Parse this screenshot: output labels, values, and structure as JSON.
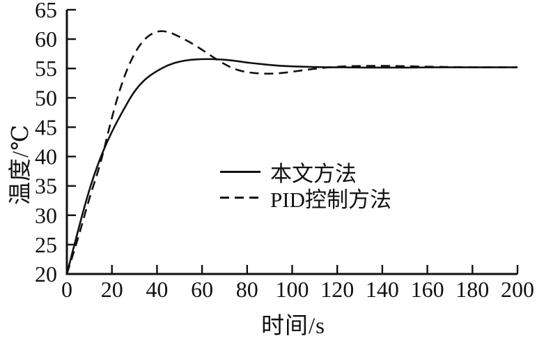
{
  "colors": {
    "ink": "#111111",
    "background": "#ffffff"
  },
  "chart_data": {
    "type": "line",
    "xlabel": "时间/s",
    "ylabel": "温度/℃",
    "xlim": [
      0,
      200
    ],
    "ylim": [
      20,
      65
    ],
    "xticks": [
      0,
      20,
      40,
      60,
      80,
      100,
      120,
      140,
      160,
      180,
      200
    ],
    "yticks": [
      20,
      25,
      30,
      35,
      40,
      45,
      50,
      55,
      60,
      65
    ],
    "grid": false,
    "legend_position": "inside-center",
    "x": [
      0,
      5,
      10,
      15,
      20,
      25,
      30,
      35,
      40,
      45,
      50,
      55,
      60,
      65,
      70,
      75,
      80,
      85,
      90,
      95,
      100,
      105,
      110,
      115,
      120,
      125,
      130,
      135,
      140,
      145,
      150,
      155,
      160,
      165,
      170,
      175,
      180,
      185,
      190,
      195,
      200
    ],
    "series": [
      {
        "name": "本文方法",
        "line_style": "solid",
        "values": [
          20,
          27.5,
          34.5,
          40,
          44.3,
          47.9,
          51.2,
          53.3,
          54.6,
          55.6,
          56.2,
          56.5,
          56.6,
          56.6,
          56.5,
          56.3,
          56.0,
          55.8,
          55.6,
          55.45,
          55.35,
          55.3,
          55.25,
          55.2,
          55.2,
          55.2,
          55.15,
          55.15,
          55.15,
          55.15,
          55.15,
          55.15,
          55.2,
          55.2,
          55.2,
          55.2,
          55.2,
          55.2,
          55.2,
          55.2,
          55.2
        ]
      },
      {
        "name": "PID控制方法",
        "line_style": "dashed",
        "values": [
          20,
          26,
          33,
          38.8,
          46.8,
          53.3,
          57.7,
          60.3,
          61.4,
          61.3,
          60.4,
          59.4,
          58.2,
          56.9,
          55.7,
          54.8,
          54.35,
          54.15,
          54.1,
          54.2,
          54.45,
          54.7,
          54.95,
          55.15,
          55.3,
          55.4,
          55.42,
          55.45,
          55.45,
          55.42,
          55.4,
          55.35,
          55.3,
          55.28,
          55.25,
          55.22,
          55.2,
          55.2,
          55.2,
          55.2,
          55.2
        ]
      }
    ]
  }
}
